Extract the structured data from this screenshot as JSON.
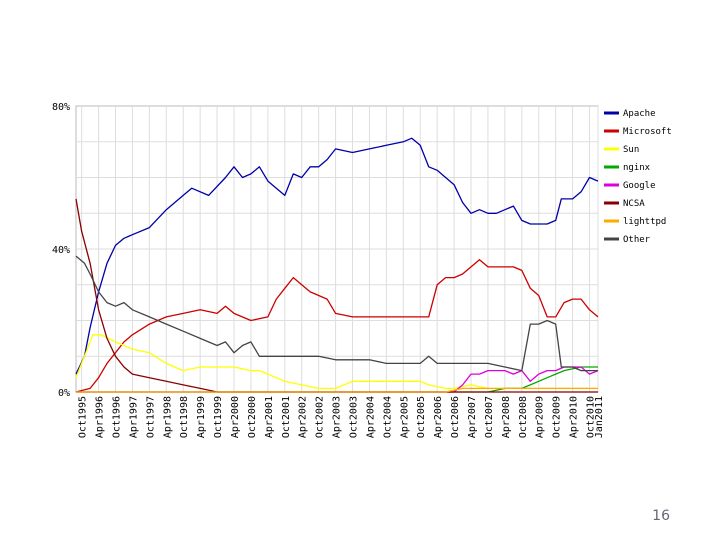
{
  "chart_data": {
    "type": "line",
    "y_tick_labels": [
      "80%",
      "40%",
      "0%"
    ],
    "y_ticks": [
      80,
      40,
      0
    ],
    "ylim": [
      0,
      80
    ],
    "x_start": "1995-08",
    "x_end": "2011-01",
    "x_tick_labels": [
      "Oct1995",
      "Apr1996",
      "Oct1996",
      "Apr1997",
      "Oct1997",
      "Apr1998",
      "Oct1998",
      "Apr1999",
      "Oct1999",
      "Apr2000",
      "Oct2000",
      "Apr2001",
      "Oct2001",
      "Apr2002",
      "Oct2002",
      "Apr2003",
      "Oct2003",
      "Apr2004",
      "Oct2004",
      "Apr2005",
      "Oct2005",
      "Apr2006",
      "Oct2006",
      "Apr2007",
      "Oct2007",
      "Apr2008",
      "Oct2008",
      "Apr2009",
      "Oct2009",
      "Apr2010",
      "Oct2010",
      "Jan2011"
    ],
    "x_tick_dates": [
      "1995-10",
      "1996-04",
      "1996-10",
      "1997-04",
      "1997-10",
      "1998-04",
      "1998-10",
      "1999-04",
      "1999-10",
      "2000-04",
      "2000-10",
      "2001-04",
      "2001-10",
      "2002-04",
      "2002-10",
      "2003-04",
      "2003-10",
      "2004-04",
      "2004-10",
      "2005-04",
      "2005-10",
      "2006-04",
      "2006-10",
      "2007-04",
      "2007-10",
      "2008-04",
      "2008-10",
      "2009-04",
      "2009-10",
      "2010-04",
      "2010-10",
      "2011-01"
    ],
    "grid": true,
    "legend_position": "right",
    "series": [
      {
        "name": "Apache",
        "color": "#0000aa",
        "points": [
          [
            "1995-08",
            5
          ],
          [
            "1995-11",
            10
          ],
          [
            "1996-01",
            18
          ],
          [
            "1996-04",
            28
          ],
          [
            "1996-07",
            36
          ],
          [
            "1996-10",
            41
          ],
          [
            "1997-01",
            43
          ],
          [
            "1997-04",
            44
          ],
          [
            "1997-10",
            46
          ],
          [
            "1998-04",
            51
          ],
          [
            "1998-10",
            55
          ],
          [
            "1999-01",
            57
          ],
          [
            "1999-07",
            55
          ],
          [
            "2000-01",
            60
          ],
          [
            "2000-04",
            63
          ],
          [
            "2000-07",
            60
          ],
          [
            "2000-10",
            61
          ],
          [
            "2001-01",
            63
          ],
          [
            "2001-04",
            59
          ],
          [
            "2001-07",
            57
          ],
          [
            "2001-10",
            55
          ],
          [
            "2002-01",
            61
          ],
          [
            "2002-04",
            60
          ],
          [
            "2002-07",
            63
          ],
          [
            "2002-10",
            63
          ],
          [
            "2003-01",
            65
          ],
          [
            "2003-04",
            68
          ],
          [
            "2003-10",
            67
          ],
          [
            "2004-04",
            68
          ],
          [
            "2004-10",
            69
          ],
          [
            "2005-04",
            70
          ],
          [
            "2005-07",
            71
          ],
          [
            "2005-10",
            69
          ],
          [
            "2006-01",
            63
          ],
          [
            "2006-04",
            62
          ],
          [
            "2006-07",
            60
          ],
          [
            "2006-10",
            58
          ],
          [
            "2007-01",
            53
          ],
          [
            "2007-04",
            50
          ],
          [
            "2007-07",
            51
          ],
          [
            "2007-10",
            50
          ],
          [
            "2008-01",
            50
          ],
          [
            "2008-04",
            51
          ],
          [
            "2008-07",
            52
          ],
          [
            "2008-10",
            48
          ],
          [
            "2009-01",
            47
          ],
          [
            "2009-04",
            47
          ],
          [
            "2009-07",
            47
          ],
          [
            "2009-10",
            48
          ],
          [
            "2009-12",
            54
          ],
          [
            "2010-04",
            54
          ],
          [
            "2010-07",
            56
          ],
          [
            "2010-10",
            60
          ],
          [
            "2011-01",
            59
          ]
        ]
      },
      {
        "name": "Microsoft",
        "color": "#cc0000",
        "points": [
          [
            "1995-08",
            0
          ],
          [
            "1996-01",
            1
          ],
          [
            "1996-04",
            4
          ],
          [
            "1996-07",
            8
          ],
          [
            "1996-10",
            11
          ],
          [
            "1997-01",
            14
          ],
          [
            "1997-04",
            16
          ],
          [
            "1997-10",
            19
          ],
          [
            "1998-04",
            21
          ],
          [
            "1998-10",
            22
          ],
          [
            "1999-04",
            23
          ],
          [
            "1999-10",
            22
          ],
          [
            "2000-01",
            24
          ],
          [
            "2000-04",
            22
          ],
          [
            "2000-10",
            20
          ],
          [
            "2001-04",
            21
          ],
          [
            "2001-07",
            26
          ],
          [
            "2001-10",
            29
          ],
          [
            "2002-01",
            32
          ],
          [
            "2002-04",
            30
          ],
          [
            "2002-07",
            28
          ],
          [
            "2002-10",
            27
          ],
          [
            "2003-01",
            26
          ],
          [
            "2003-04",
            22
          ],
          [
            "2003-10",
            21
          ],
          [
            "2004-04",
            21
          ],
          [
            "2004-10",
            21
          ],
          [
            "2005-04",
            21
          ],
          [
            "2005-10",
            21
          ],
          [
            "2006-01",
            21
          ],
          [
            "2006-04",
            30
          ],
          [
            "2006-07",
            32
          ],
          [
            "2006-10",
            32
          ],
          [
            "2007-01",
            33
          ],
          [
            "2007-04",
            35
          ],
          [
            "2007-07",
            37
          ],
          [
            "2007-10",
            35
          ],
          [
            "2008-04",
            35
          ],
          [
            "2008-07",
            35
          ],
          [
            "2008-10",
            34
          ],
          [
            "2009-01",
            29
          ],
          [
            "2009-04",
            27
          ],
          [
            "2009-07",
            21
          ],
          [
            "2009-10",
            21
          ],
          [
            "2010-01",
            25
          ],
          [
            "2010-04",
            26
          ],
          [
            "2010-07",
            26
          ],
          [
            "2010-10",
            23
          ],
          [
            "2011-01",
            21
          ]
        ]
      },
      {
        "name": "Sun",
        "color": "#ffff00",
        "points": [
          [
            "1995-08",
            4
          ],
          [
            "1995-11",
            10
          ],
          [
            "1996-02",
            16
          ],
          [
            "1996-05",
            16
          ],
          [
            "1996-10",
            14
          ],
          [
            "1997-04",
            12
          ],
          [
            "1997-10",
            11
          ],
          [
            "1998-04",
            8
          ],
          [
            "1998-10",
            6
          ],
          [
            "1999-04",
            7
          ],
          [
            "1999-10",
            7
          ],
          [
            "2000-04",
            7
          ],
          [
            "2000-10",
            6
          ],
          [
            "2001-01",
            6
          ],
          [
            "2001-04",
            5
          ],
          [
            "2001-07",
            4
          ],
          [
            "2001-10",
            3
          ],
          [
            "2002-04",
            2
          ],
          [
            "2002-10",
            1
          ],
          [
            "2003-04",
            1
          ],
          [
            "2003-10",
            3
          ],
          [
            "2004-04",
            3
          ],
          [
            "2004-10",
            3
          ],
          [
            "2005-04",
            3
          ],
          [
            "2005-10",
            3
          ],
          [
            "2006-01",
            2
          ],
          [
            "2006-07",
            1
          ],
          [
            "2006-10",
            1
          ],
          [
            "2007-04",
            2
          ],
          [
            "2007-10",
            1
          ],
          [
            "2008-04",
            1
          ],
          [
            "2008-10",
            1
          ],
          [
            "2009-04",
            1
          ],
          [
            "2009-10",
            1
          ],
          [
            "2010-04",
            1
          ],
          [
            "2011-01",
            1
          ]
        ]
      },
      {
        "name": "nginx",
        "color": "#00aa00",
        "points": [
          [
            "1995-08",
            0
          ],
          [
            "2007-10",
            0
          ],
          [
            "2008-04",
            1
          ],
          [
            "2008-10",
            1
          ],
          [
            "2009-01",
            2
          ],
          [
            "2009-04",
            3
          ],
          [
            "2009-07",
            4
          ],
          [
            "2009-10",
            5
          ],
          [
            "2010-01",
            6
          ],
          [
            "2010-07",
            7
          ],
          [
            "2011-01",
            7
          ]
        ]
      },
      {
        "name": "Google",
        "color": "#dd00dd",
        "points": [
          [
            "1995-08",
            0
          ],
          [
            "2006-10",
            0
          ],
          [
            "2007-01",
            2
          ],
          [
            "2007-04",
            5
          ],
          [
            "2007-07",
            5
          ],
          [
            "2007-10",
            6
          ],
          [
            "2008-01",
            6
          ],
          [
            "2008-04",
            6
          ],
          [
            "2008-07",
            5
          ],
          [
            "2008-10",
            6
          ],
          [
            "2009-01",
            3
          ],
          [
            "2009-04",
            5
          ],
          [
            "2009-07",
            6
          ],
          [
            "2009-10",
            6
          ],
          [
            "2010-01",
            7
          ],
          [
            "2010-07",
            7
          ],
          [
            "2010-10",
            5
          ],
          [
            "2011-01",
            6
          ]
        ]
      },
      {
        "name": "NCSA",
        "color": "#880000",
        "points": [
          [
            "1995-08",
            54
          ],
          [
            "1995-10",
            45
          ],
          [
            "1996-01",
            36
          ],
          [
            "1996-04",
            23
          ],
          [
            "1996-07",
            15
          ],
          [
            "1996-10",
            10
          ],
          [
            "1997-01",
            7
          ],
          [
            "1997-04",
            5
          ],
          [
            "1997-10",
            4
          ],
          [
            "1998-04",
            3
          ],
          [
            "1998-10",
            2
          ],
          [
            "1999-04",
            1
          ],
          [
            "1999-10",
            0
          ],
          [
            "2011-01",
            0
          ]
        ]
      },
      {
        "name": "lighttpd",
        "color": "#ffaa00",
        "points": [
          [
            "1995-08",
            0
          ],
          [
            "2006-07",
            0
          ],
          [
            "2007-01",
            1
          ],
          [
            "2007-10",
            1
          ],
          [
            "2008-10",
            1
          ],
          [
            "2009-04",
            1
          ],
          [
            "2009-10",
            1
          ],
          [
            "2010-04",
            1
          ],
          [
            "2011-01",
            1
          ]
        ]
      },
      {
        "name": "Other",
        "color": "#444444",
        "points": [
          [
            "1995-08",
            38
          ],
          [
            "1995-11",
            36
          ],
          [
            "1996-01",
            33
          ],
          [
            "1996-04",
            28
          ],
          [
            "1996-07",
            25
          ],
          [
            "1996-10",
            24
          ],
          [
            "1997-01",
            25
          ],
          [
            "1997-04",
            23
          ],
          [
            "1997-10",
            21
          ],
          [
            "1998-04",
            19
          ],
          [
            "1998-10",
            17
          ],
          [
            "1999-04",
            15
          ],
          [
            "1999-10",
            13
          ],
          [
            "2000-01",
            14
          ],
          [
            "2000-04",
            11
          ],
          [
            "2000-07",
            13
          ],
          [
            "2000-10",
            14
          ],
          [
            "2001-01",
            10
          ],
          [
            "2001-07",
            10
          ],
          [
            "2002-04",
            10
          ],
          [
            "2002-10",
            10
          ],
          [
            "2003-04",
            9
          ],
          [
            "2003-10",
            9
          ],
          [
            "2004-04",
            9
          ],
          [
            "2004-10",
            8
          ],
          [
            "2005-04",
            8
          ],
          [
            "2005-10",
            8
          ],
          [
            "2006-01",
            10
          ],
          [
            "2006-04",
            8
          ],
          [
            "2006-10",
            8
          ],
          [
            "2007-04",
            8
          ],
          [
            "2007-10",
            8
          ],
          [
            "2008-04",
            7
          ],
          [
            "2008-10",
            6
          ],
          [
            "2009-01",
            19
          ],
          [
            "2009-04",
            19
          ],
          [
            "2009-07",
            20
          ],
          [
            "2009-10",
            19
          ],
          [
            "2009-12",
            7
          ],
          [
            "2010-04",
            7
          ],
          [
            "2010-07",
            6
          ],
          [
            "2010-10",
            6
          ],
          [
            "2011-01",
            6
          ]
        ]
      }
    ]
  },
  "page_number": "16"
}
